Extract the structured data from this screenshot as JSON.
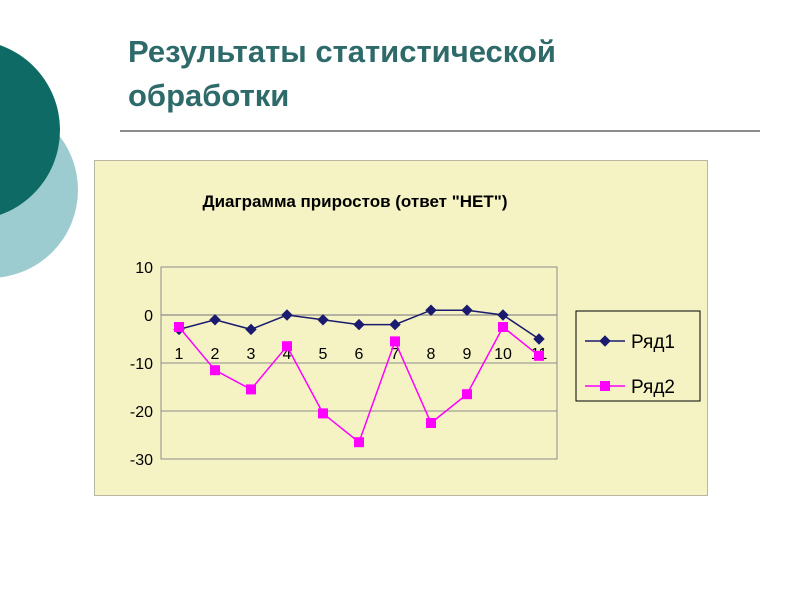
{
  "slide": {
    "title_line1": "Результаты статистической",
    "title_line2": "обработки"
  },
  "colors": {
    "accent_dark": "#0e6a64",
    "accent_light": "#9cccd0",
    "chart_bg": "#f5f3c4",
    "series1": "#1a1a6e",
    "series2": "#ff00ff"
  },
  "chart_data": {
    "type": "line",
    "title": "Диаграмма приростов (ответ \"НЕТ\")",
    "xlabel": "",
    "ylabel": "",
    "categories": [
      "1",
      "2",
      "3",
      "4",
      "5",
      "6",
      "7",
      "8",
      "9",
      "10",
      "11"
    ],
    "ylim": [
      -30,
      10
    ],
    "yticks": [
      10,
      0,
      -10,
      -20,
      -30
    ],
    "grid": true,
    "legend": "right",
    "series": [
      {
        "name": "Ряд1",
        "marker": "diamond",
        "color": "#1a1a6e",
        "values": [
          -3,
          -1,
          -3,
          0,
          -1,
          -2,
          -2,
          1,
          1,
          0,
          -5
        ]
      },
      {
        "name": "Ряд2",
        "marker": "square",
        "color": "#ff00ff",
        "values": [
          -2.5,
          -11.5,
          -15.5,
          -6.5,
          -20.5,
          -26.5,
          -5.5,
          -22.5,
          -16.5,
          -2.5,
          -8.5
        ]
      }
    ]
  }
}
